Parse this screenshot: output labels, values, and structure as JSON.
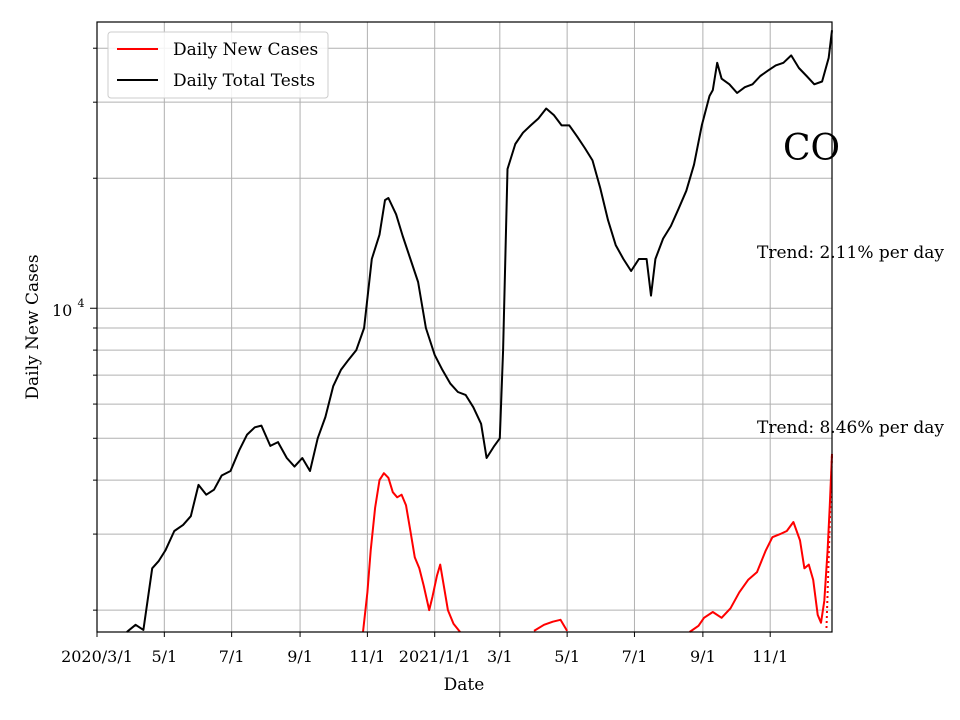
{
  "chart_data": {
    "type": "line",
    "title": "",
    "xlabel": "Date",
    "ylabel": "Daily New Cases",
    "yscale": "log",
    "ylim": [
      1780,
      46000
    ],
    "xlim": [
      "2020-03-01",
      "2021-12-27"
    ],
    "grid": true,
    "legend_position": "upper-left",
    "x_tick_labels": [
      {
        "date": "2020-03-01",
        "label": "2020/3/1"
      },
      {
        "date": "2020-05-01",
        "label": "5/1"
      },
      {
        "date": "2020-07-01",
        "label": "7/1"
      },
      {
        "date": "2020-09-01",
        "label": "9/1"
      },
      {
        "date": "2020-11-01",
        "label": "11/1"
      },
      {
        "date": "2021-01-01",
        "label": "2021/1/1"
      },
      {
        "date": "2021-03-01",
        "label": "3/1"
      },
      {
        "date": "2021-05-01",
        "label": "5/1"
      },
      {
        "date": "2021-07-01",
        "label": "7/1"
      },
      {
        "date": "2021-09-01",
        "label": "9/1"
      },
      {
        "date": "2021-11-01",
        "label": "11/1"
      }
    ],
    "y_tick_label": {
      "base": "10",
      "exponent": "4",
      "value": 10000
    },
    "state_label": "CO",
    "annotations": [
      {
        "text": "Trend: 2.11% per day",
        "series": "Daily Total Tests"
      },
      {
        "text": "Trend: 8.46% per day",
        "series": "Daily New Cases"
      }
    ],
    "colors": {
      "cases": "#ff0000",
      "tests": "#000000"
    },
    "series": [
      {
        "name": "Daily New Cases",
        "color": "#ff0000",
        "points": [
          [
            "2020-10-28",
            1780
          ],
          [
            "2020-11-01",
            2200
          ],
          [
            "2020-11-04",
            2750
          ],
          [
            "2020-11-08",
            3450
          ],
          [
            "2020-11-12",
            4000
          ],
          [
            "2020-11-16",
            4150
          ],
          [
            "2020-11-20",
            4050
          ],
          [
            "2020-11-24",
            3750
          ],
          [
            "2020-11-28",
            3650
          ],
          [
            "2020-12-02",
            3700
          ],
          [
            "2020-12-06",
            3500
          ],
          [
            "2020-12-10",
            3050
          ],
          [
            "2020-12-14",
            2650
          ],
          [
            "2020-12-18",
            2500
          ],
          [
            "2020-12-22",
            2280
          ],
          [
            "2020-12-27",
            2000
          ],
          [
            "2020-12-30",
            2150
          ],
          [
            "2021-01-03",
            2400
          ],
          [
            "2021-01-06",
            2550
          ],
          [
            "2021-01-09",
            2300
          ],
          [
            "2021-01-13",
            2000
          ],
          [
            "2021-01-18",
            1860
          ],
          [
            "2021-01-24",
            1780
          ]
        ],
        "extra_segments": [
          [
            [
              "2021-04-01",
              1790
            ],
            [
              "2021-04-10",
              1850
            ],
            [
              "2021-04-18",
              1880
            ],
            [
              "2021-04-25",
              1900
            ],
            [
              "2021-05-01",
              1790
            ]
          ],
          [
            [
              "2021-08-20",
              1780
            ],
            [
              "2021-08-28",
              1840
            ],
            [
              "2021-09-02",
              1920
            ],
            [
              "2021-09-10",
              1980
            ],
            [
              "2021-09-18",
              1920
            ],
            [
              "2021-09-26",
              2020
            ],
            [
              "2021-10-04",
              2200
            ],
            [
              "2021-10-12",
              2350
            ],
            [
              "2021-10-20",
              2450
            ],
            [
              "2021-10-28",
              2750
            ],
            [
              "2021-11-03",
              2950
            ],
            [
              "2021-11-10",
              3000
            ],
            [
              "2021-11-16",
              3050
            ],
            [
              "2021-11-22",
              3200
            ],
            [
              "2021-11-28",
              2900
            ],
            [
              "2021-12-02",
              2500
            ],
            [
              "2021-12-06",
              2550
            ],
            [
              "2021-12-10",
              2350
            ],
            [
              "2021-12-14",
              1950
            ],
            [
              "2021-12-17",
              1870
            ],
            [
              "2021-12-20",
              2100
            ],
            [
              "2021-12-23",
              2750
            ],
            [
              "2021-12-25",
              3500
            ],
            [
              "2021-12-27",
              4600
            ]
          ]
        ]
      },
      {
        "name": "Daily Total Tests",
        "color": "#000000",
        "points": [
          [
            "2020-03-28",
            1780
          ],
          [
            "2020-04-05",
            1850
          ],
          [
            "2020-04-12",
            1800
          ],
          [
            "2020-04-20",
            2500
          ],
          [
            "2020-04-26",
            2600
          ],
          [
            "2020-05-02",
            2750
          ],
          [
            "2020-05-10",
            3050
          ],
          [
            "2020-05-18",
            3150
          ],
          [
            "2020-05-25",
            3300
          ],
          [
            "2020-06-01",
            3900
          ],
          [
            "2020-06-08",
            3700
          ],
          [
            "2020-06-15",
            3800
          ],
          [
            "2020-06-22",
            4100
          ],
          [
            "2020-06-30",
            4200
          ],
          [
            "2020-07-08",
            4700
          ],
          [
            "2020-07-15",
            5100
          ],
          [
            "2020-07-22",
            5300
          ],
          [
            "2020-07-28",
            5350
          ],
          [
            "2020-08-05",
            4800
          ],
          [
            "2020-08-12",
            4900
          ],
          [
            "2020-08-20",
            4500
          ],
          [
            "2020-08-27",
            4300
          ],
          [
            "2020-09-03",
            4500
          ],
          [
            "2020-09-10",
            4200
          ],
          [
            "2020-09-17",
            5000
          ],
          [
            "2020-09-24",
            5600
          ],
          [
            "2020-10-01",
            6600
          ],
          [
            "2020-10-08",
            7200
          ],
          [
            "2020-10-15",
            7600
          ],
          [
            "2020-10-22",
            8000
          ],
          [
            "2020-10-29",
            9000
          ],
          [
            "2020-11-05",
            13000
          ],
          [
            "2020-11-12",
            14800
          ],
          [
            "2020-11-17",
            17800
          ],
          [
            "2020-11-20",
            18000
          ],
          [
            "2020-11-27",
            16500
          ],
          [
            "2020-12-03",
            14700
          ],
          [
            "2020-12-10",
            13000
          ],
          [
            "2020-12-17",
            11500
          ],
          [
            "2020-12-24",
            9000
          ],
          [
            "2021-01-01",
            7800
          ],
          [
            "2021-01-08",
            7200
          ],
          [
            "2021-01-15",
            6700
          ],
          [
            "2021-01-22",
            6400
          ],
          [
            "2021-01-29",
            6300
          ],
          [
            "2021-02-05",
            5900
          ],
          [
            "2021-02-12",
            5400
          ],
          [
            "2021-02-17",
            4500
          ],
          [
            "2021-02-24",
            4800
          ],
          [
            "2021-03-01",
            5000
          ],
          [
            "2021-03-04",
            8000
          ],
          [
            "2021-03-08",
            21000
          ],
          [
            "2021-03-15",
            24000
          ],
          [
            "2021-03-22",
            25500
          ],
          [
            "2021-03-29",
            26500
          ],
          [
            "2021-04-05",
            27500
          ],
          [
            "2021-04-12",
            29000
          ],
          [
            "2021-04-19",
            28000
          ],
          [
            "2021-04-26",
            26500
          ],
          [
            "2021-05-03",
            26500
          ],
          [
            "2021-05-10",
            25000
          ],
          [
            "2021-05-17",
            23500
          ],
          [
            "2021-05-24",
            22000
          ],
          [
            "2021-05-31",
            19000
          ],
          [
            "2021-06-07",
            16000
          ],
          [
            "2021-06-14",
            14000
          ],
          [
            "2021-06-21",
            13000
          ],
          [
            "2021-06-28",
            12200
          ],
          [
            "2021-07-05",
            13000
          ],
          [
            "2021-07-12",
            13000
          ],
          [
            "2021-07-16",
            10700
          ],
          [
            "2021-07-20",
            13000
          ],
          [
            "2021-07-27",
            14500
          ],
          [
            "2021-08-03",
            15500
          ],
          [
            "2021-08-10",
            17000
          ],
          [
            "2021-08-17",
            18700
          ],
          [
            "2021-08-24",
            21500
          ],
          [
            "2021-08-31",
            26500
          ],
          [
            "2021-09-07",
            31000
          ],
          [
            "2021-09-10",
            32000
          ],
          [
            "2021-09-14",
            37000
          ],
          [
            "2021-09-18",
            34000
          ],
          [
            "2021-09-25",
            33000
          ],
          [
            "2021-10-02",
            31500
          ],
          [
            "2021-10-09",
            32500
          ],
          [
            "2021-10-16",
            33000
          ],
          [
            "2021-10-23",
            34500
          ],
          [
            "2021-10-30",
            35500
          ],
          [
            "2021-11-06",
            36500
          ],
          [
            "2021-11-13",
            37000
          ],
          [
            "2021-11-20",
            38500
          ],
          [
            "2021-11-27",
            36000
          ],
          [
            "2021-12-04",
            34500
          ],
          [
            "2021-12-11",
            33000
          ],
          [
            "2021-12-18",
            33500
          ],
          [
            "2021-12-24",
            38000
          ],
          [
            "2021-12-27",
            44000
          ]
        ]
      }
    ]
  }
}
